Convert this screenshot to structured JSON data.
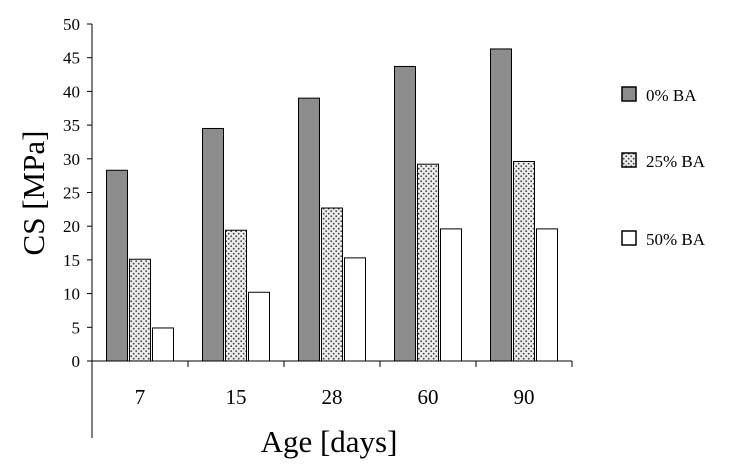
{
  "chart_data": {
    "type": "bar",
    "title": "",
    "xlabel": "Age [days]",
    "ylabel": "CS [MPa]",
    "categories": [
      "7",
      "15",
      "28",
      "60",
      "90"
    ],
    "ylim": [
      0,
      50
    ],
    "yticks": [
      "0",
      "5",
      "10",
      "15",
      "20",
      "25",
      "30",
      "35",
      "40",
      "45",
      "50"
    ],
    "grid": false,
    "legend_position": "right",
    "series": [
      {
        "name": "0% BA",
        "values": [
          28.3,
          34.5,
          39.0,
          43.7,
          46.3
        ],
        "color": "#8c8c8c",
        "pattern": "solid"
      },
      {
        "name": "25% BA",
        "values": [
          15.1,
          19.4,
          22.7,
          29.2,
          29.6
        ],
        "color": "#d9d9d9",
        "pattern": "dotted"
      },
      {
        "name": "50% BA",
        "values": [
          4.9,
          10.2,
          15.3,
          19.6,
          19.6
        ],
        "color": "#ffffff",
        "pattern": "white"
      }
    ]
  }
}
